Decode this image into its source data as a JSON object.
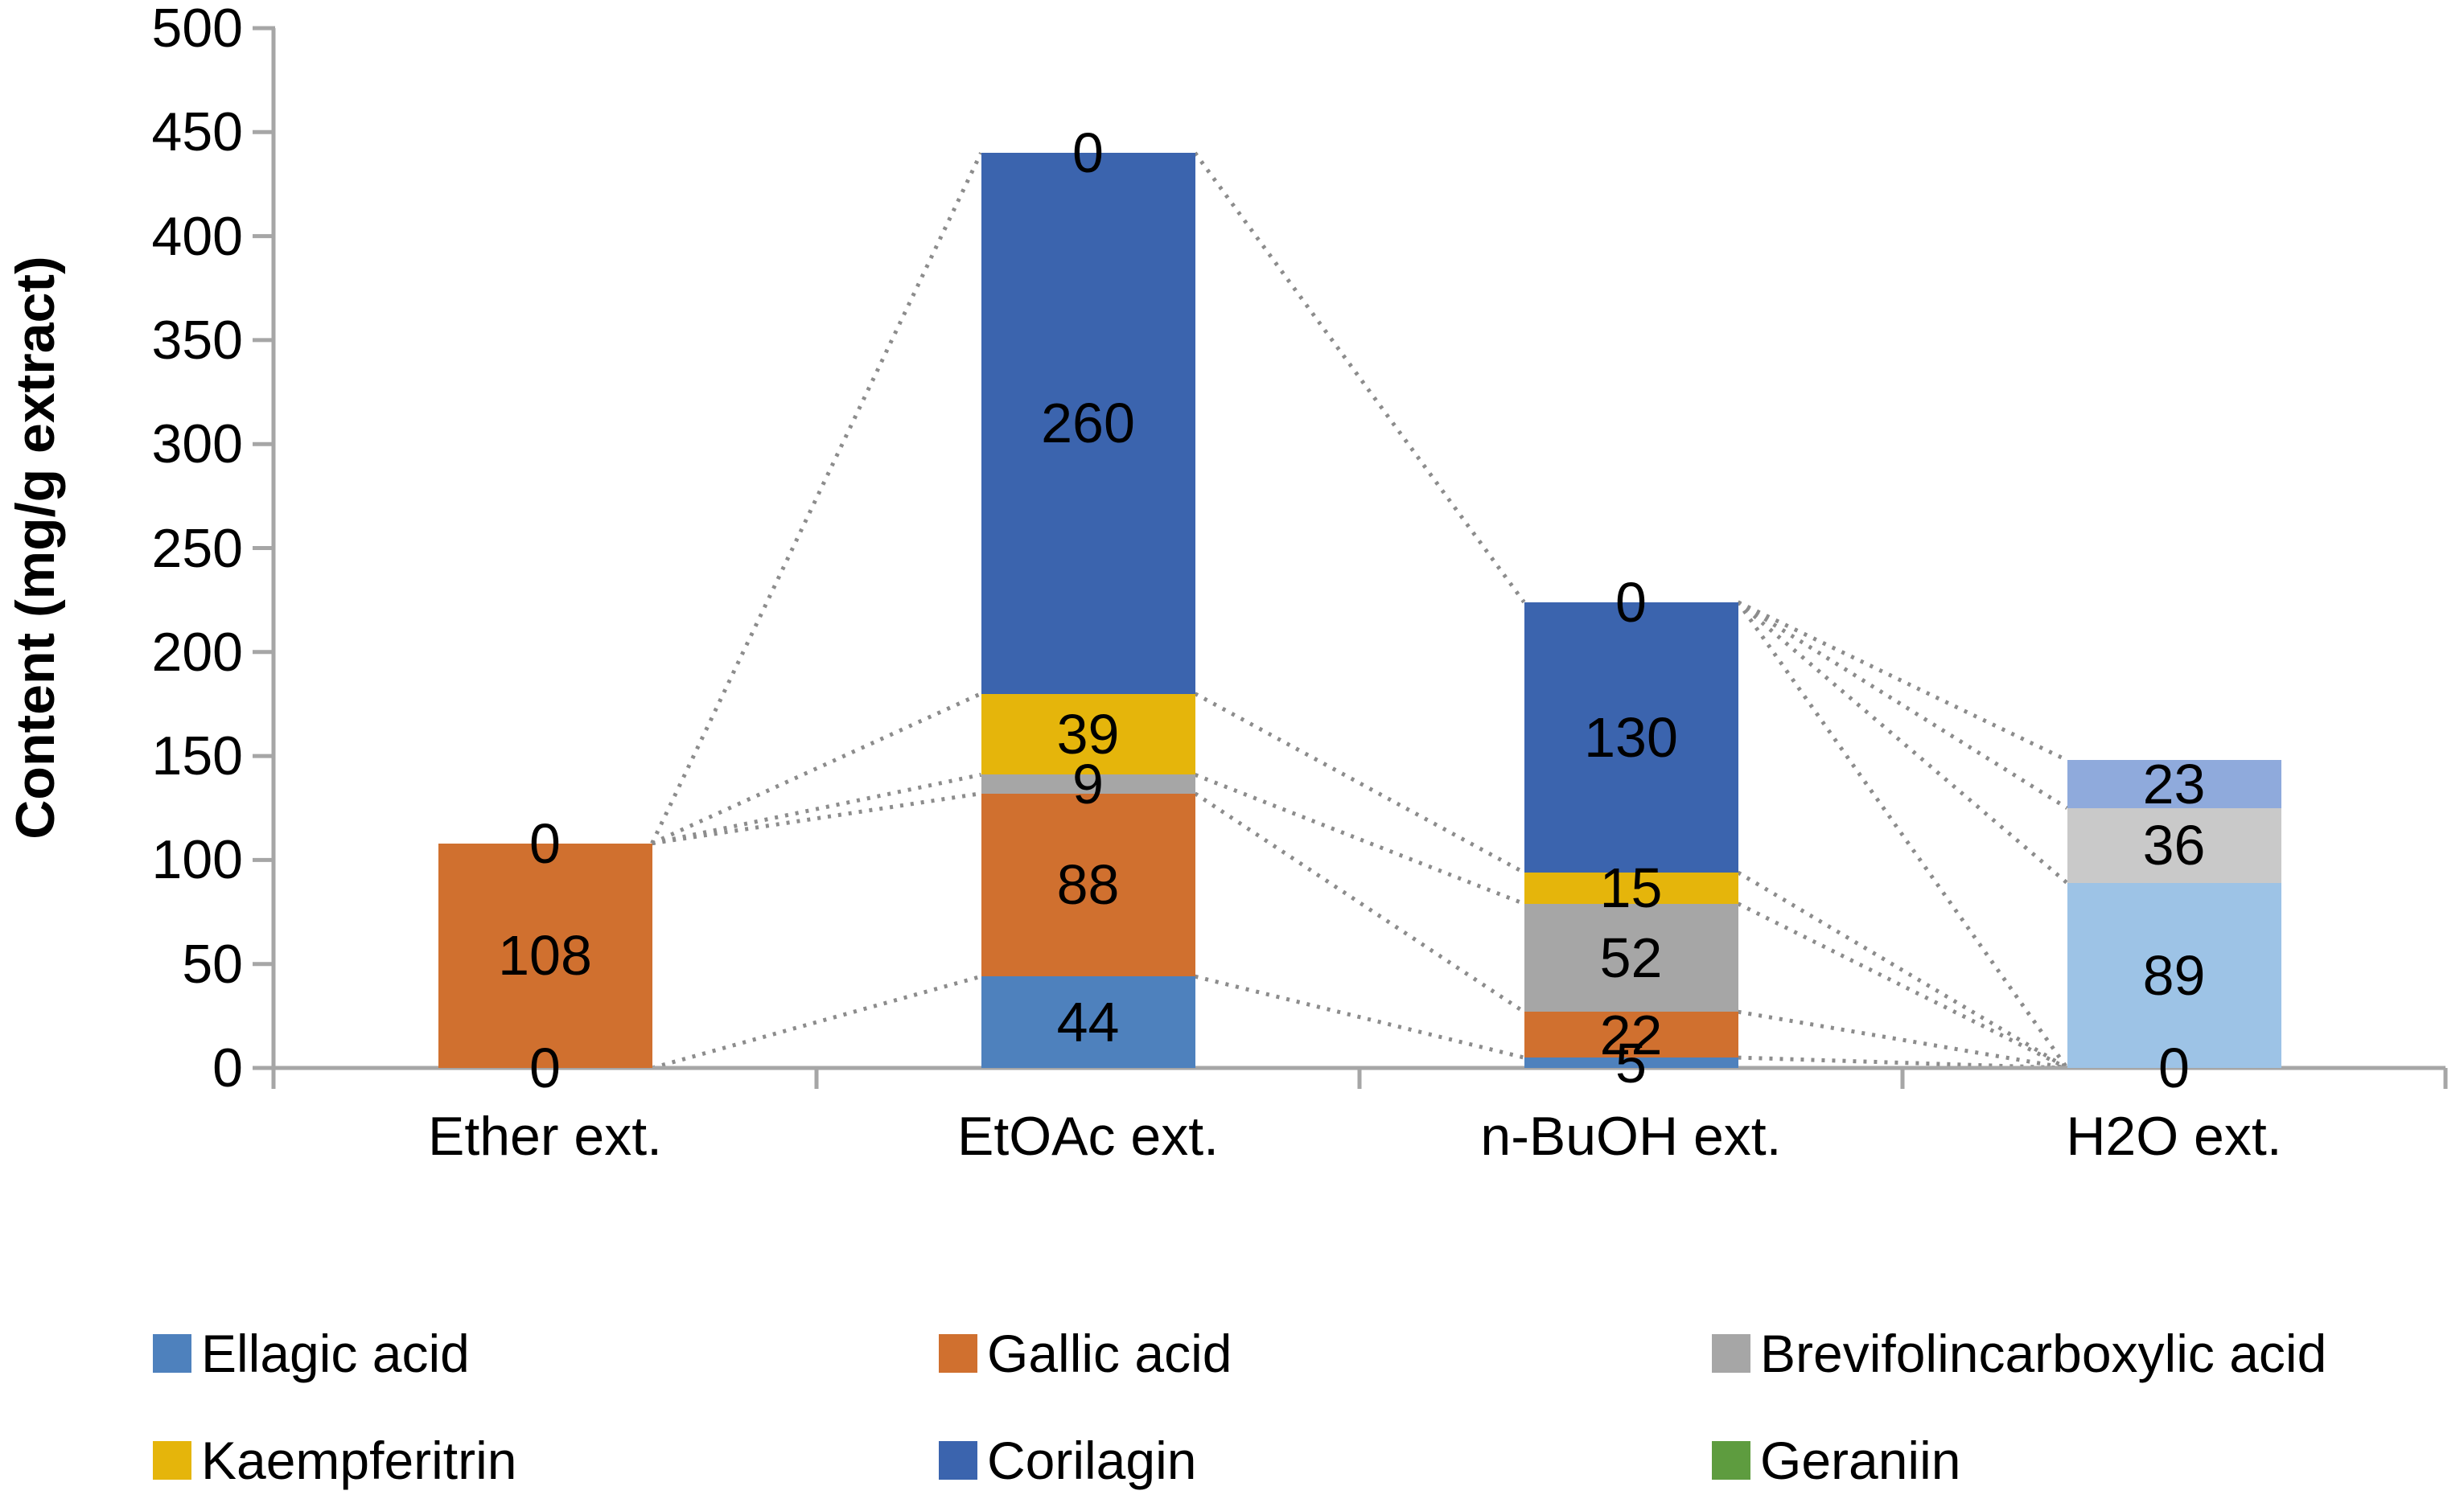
{
  "chart_data": {
    "type": "bar",
    "stacked": true,
    "title": "",
    "ylabel": "Content (mg/g extract)",
    "xlabel": "",
    "ylim": [
      0,
      500
    ],
    "ytick_step": 50,
    "ytick_labels": [
      "0",
      "50",
      "100",
      "150",
      "200",
      "250",
      "300",
      "350",
      "400",
      "450",
      "500"
    ],
    "categories": [
      "Ether ext.",
      "EtOAc ext.",
      "n-BuOH ext.",
      "H2O ext."
    ],
    "grid": false,
    "legend_position": "bottom",
    "legend": [
      {
        "label": "Ellagic acid",
        "color": "#4E81BD"
      },
      {
        "label": "Gallic acid",
        "color": "#D0702F"
      },
      {
        "label": "Brevifolincarboxylic acid",
        "color": "#A6A6A6"
      },
      {
        "label": "Kaempferitrin",
        "color": "#E5B50B"
      },
      {
        "label": "Corilagin",
        "color": "#3B64AE"
      },
      {
        "label": "Geraniin",
        "color": "#5E9C3F"
      }
    ],
    "series": [
      {
        "name": "Ellagic acid",
        "color": "#4E81BD",
        "values": [
          0,
          44,
          5,
          89
        ]
      },
      {
        "name": "Gallic acid",
        "color": "#D0702F",
        "values": [
          108,
          88,
          22,
          0
        ]
      },
      {
        "name": "Brevifolincarboxylic acid",
        "color": "#A6A6A6",
        "values": [
          0,
          9,
          52,
          36
        ]
      },
      {
        "name": "Kaempferitrin",
        "color": "#E5B50B",
        "values": [
          0,
          39,
          15,
          0
        ]
      },
      {
        "name": "Corilagin",
        "color": "#3B64AE",
        "values": [
          0,
          260,
          130,
          23
        ]
      },
      {
        "name": "Geraniin",
        "color": "#5E9C3F",
        "values": [
          0,
          0,
          0,
          0
        ]
      }
    ],
    "bars": [
      {
        "category": "Ether ext.",
        "segments": [
          {
            "value": 108,
            "label": "108",
            "color": "#D0702F"
          }
        ],
        "outside_labels": [
          {
            "text": "0",
            "at": 108
          },
          {
            "text": "0",
            "at": 0
          }
        ]
      },
      {
        "category": "EtOAc ext.",
        "segments": [
          {
            "value": 44,
            "label": "44",
            "color": "#4E81BD"
          },
          {
            "value": 88,
            "label": "88",
            "color": "#D0702F"
          },
          {
            "value": 9,
            "label": "9",
            "color": "#A6A6A6"
          },
          {
            "value": 39,
            "label": "39",
            "color": "#E5B50B"
          },
          {
            "value": 260,
            "label": "260",
            "color": "#3B64AE"
          }
        ],
        "outside_labels": [
          {
            "text": "0",
            "at": 440
          }
        ]
      },
      {
        "category": "n-BuOH ext.",
        "segments": [
          {
            "value": 5,
            "label": "5",
            "color": "#4E81BD"
          },
          {
            "value": 22,
            "label": "22",
            "color": "#D0702F"
          },
          {
            "value": 52,
            "label": "52",
            "color": "#A6A6A6"
          },
          {
            "value": 15,
            "label": "15",
            "color": "#E5B50B"
          },
          {
            "value": 130,
            "label": "130",
            "color": "#3B64AE"
          }
        ],
        "outside_labels": [
          {
            "text": "0",
            "at": 224
          }
        ]
      },
      {
        "category": "H2O ext.",
        "segments": [
          {
            "value": 89,
            "label": "89",
            "color": "#9DC3E6"
          },
          {
            "value": 36,
            "label": "36",
            "color": "#C9C9C9"
          },
          {
            "value": 23,
            "label": "23",
            "color": "#8FAADC"
          }
        ],
        "outside_labels": [
          {
            "text": "0",
            "at": 0
          }
        ]
      }
    ],
    "connectors": [
      {
        "from": [
          0,
          0
        ],
        "to": [
          1,
          44
        ]
      },
      {
        "from": [
          0,
          108
        ],
        "to": [
          1,
          132
        ]
      },
      {
        "from": [
          0,
          108
        ],
        "to": [
          1,
          141
        ]
      },
      {
        "from": [
          0,
          108
        ],
        "to": [
          1,
          180
        ]
      },
      {
        "from": [
          0,
          108
        ],
        "to": [
          1,
          440
        ]
      },
      {
        "from": [
          1,
          44
        ],
        "to": [
          2,
          5
        ]
      },
      {
        "from": [
          1,
          132
        ],
        "to": [
          2,
          27
        ]
      },
      {
        "from": [
          1,
          141
        ],
        "to": [
          2,
          79
        ]
      },
      {
        "from": [
          1,
          180
        ],
        "to": [
          2,
          94
        ]
      },
      {
        "from": [
          1,
          440
        ],
        "to": [
          2,
          224
        ]
      },
      {
        "from": [
          2,
          5
        ],
        "to": [
          3,
          0
        ]
      },
      {
        "from": [
          2,
          27
        ],
        "to": [
          3,
          0
        ]
      },
      {
        "from": [
          2,
          79
        ],
        "to": [
          3,
          0
        ]
      },
      {
        "from": [
          2,
          94
        ],
        "to": [
          3,
          0
        ]
      },
      {
        "from": [
          2,
          224
        ],
        "to": [
          3,
          0
        ]
      },
      {
        "from": [
          2,
          224
        ],
        "to": [
          3,
          89
        ]
      },
      {
        "from": [
          2,
          224
        ],
        "to": [
          3,
          125
        ]
      },
      {
        "from": [
          2,
          224
        ],
        "to": [
          3,
          148
        ]
      }
    ],
    "colors": {
      "axis": "#A6A6A6",
      "connector_line": "#8C8C8C",
      "label_text": "#000000",
      "h2o_light_blue": "#9DC3E6",
      "h2o_light_gray": "#C9C9C9",
      "h2o_light_periwinkle": "#8FAADC"
    }
  }
}
